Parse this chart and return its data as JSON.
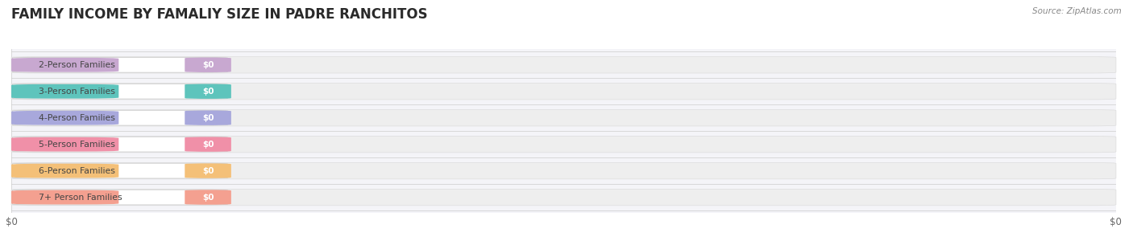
{
  "title": "FAMILY INCOME BY FAMALIY SIZE IN PADRE RANCHITOS",
  "source_text": "Source: ZipAtlas.com",
  "categories": [
    "2-Person Families",
    "3-Person Families",
    "4-Person Families",
    "5-Person Families",
    "6-Person Families",
    "7+ Person Families"
  ],
  "values": [
    0,
    0,
    0,
    0,
    0,
    0
  ],
  "bar_colors": [
    "#c8a8d0",
    "#5ec4bc",
    "#a8a8dc",
    "#f090a8",
    "#f4c078",
    "#f4a090"
  ],
  "background_color": "#ffffff",
  "plot_bg_color": "#f4f4f8",
  "bar_bg_color": "#eeeeee",
  "title_fontsize": 12,
  "xtick_labels": [
    "$0",
    "$0"
  ],
  "xtick_positions": [
    0.0,
    1.0
  ]
}
